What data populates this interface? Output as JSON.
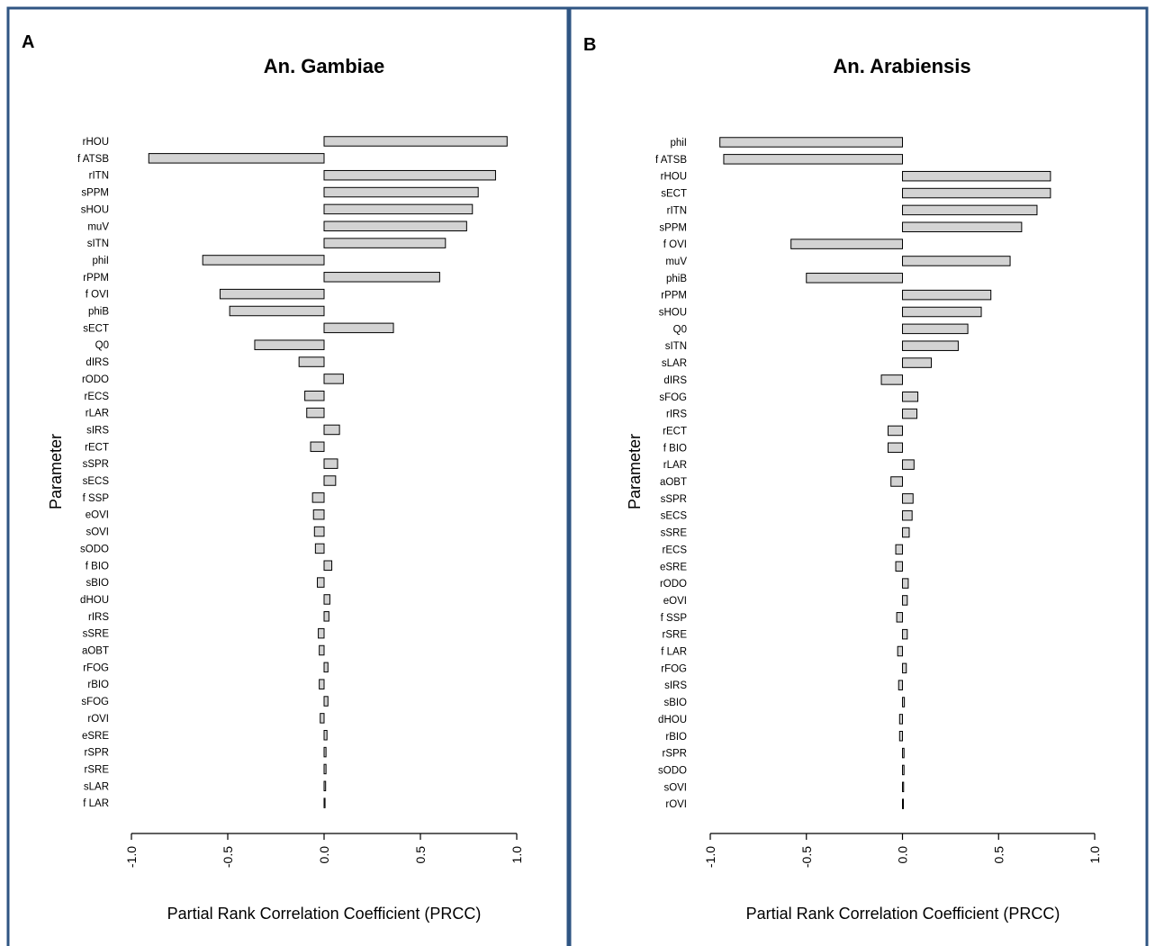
{
  "chart_data": [
    {
      "type": "bar",
      "orientation": "horizontal",
      "panel": "A",
      "title": "An. Gambiae",
      "xlabel": "Partial Rank Correlation Coefficient (PRCC)",
      "ylabel": "Parameter",
      "xlim": [
        -1.0,
        1.0
      ],
      "xticks": [
        "-1.0",
        "-0.5",
        "0.0",
        "0.5",
        "1.0"
      ],
      "categories": [
        "rHOU",
        "f ATSB",
        "rITN",
        "sPPM",
        "sHOU",
        "muV",
        "sITN",
        "phiI",
        "rPPM",
        "f OVI",
        "phiB",
        "sECT",
        "Q0",
        "dIRS",
        "rODO",
        "rECS",
        "rLAR",
        "sIRS",
        "rECT",
        "sSPR",
        "sECS",
        "f SSP",
        "eOVI",
        "sOVI",
        "sODO",
        "f BIO",
        "sBIO",
        "dHOU",
        "rIRS",
        "sSRE",
        "aOBT",
        "rFOG",
        "rBIO",
        "sFOG",
        "rOVI",
        "eSRE",
        "rSPR",
        "rSRE",
        "sLAR",
        "f LAR"
      ],
      "values": [
        0.95,
        -0.91,
        0.89,
        0.8,
        0.77,
        0.74,
        0.63,
        -0.63,
        0.6,
        -0.54,
        -0.49,
        0.36,
        -0.36,
        -0.13,
        0.1,
        -0.1,
        -0.09,
        0.08,
        -0.07,
        0.07,
        0.06,
        -0.06,
        -0.055,
        -0.05,
        -0.045,
        0.04,
        -0.035,
        0.03,
        0.025,
        -0.03,
        -0.025,
        0.02,
        -0.025,
        0.02,
        -0.02,
        0.015,
        0.01,
        0.01,
        0.008,
        0.005
      ]
    },
    {
      "type": "bar",
      "orientation": "horizontal",
      "panel": "B",
      "title": "An. Arabiensis",
      "xlabel": "Partial Rank Correlation Coefficient (PRCC)",
      "ylabel": "Parameter",
      "xlim": [
        -1.0,
        1.0
      ],
      "xticks": [
        "-1.0",
        "-0.5",
        "0.0",
        "0.5",
        "1.0"
      ],
      "categories": [
        "phiI",
        "f ATSB",
        "rHOU",
        "sECT",
        "rITN",
        "sPPM",
        "f OVI",
        "muV",
        "phiB",
        "rPPM",
        "sHOU",
        "Q0",
        "sITN",
        "sLAR",
        "dIRS",
        "sFOG",
        "rIRS",
        "rECT",
        "f BIO",
        "rLAR",
        "aOBT",
        "sSPR",
        "sECS",
        "sSRE",
        "rECS",
        "eSRE",
        "rODO",
        "eOVI",
        "f SSP",
        "rSRE",
        "f LAR",
        "rFOG",
        "sIRS",
        "sBIO",
        "dHOU",
        "rBIO",
        "rSPR",
        "sODO",
        "sOVI",
        "rOVI"
      ],
      "values": [
        -0.95,
        -0.93,
        0.77,
        0.77,
        0.7,
        0.62,
        -0.58,
        0.56,
        -0.5,
        0.46,
        0.41,
        0.34,
        0.29,
        0.15,
        -0.11,
        0.08,
        0.075,
        -0.075,
        -0.075,
        0.06,
        -0.06,
        0.055,
        0.05,
        0.035,
        -0.035,
        -0.035,
        0.03,
        0.025,
        -0.03,
        0.025,
        -0.025,
        0.02,
        -0.02,
        0.01,
        -0.015,
        -0.015,
        0.008,
        0.008,
        0.006,
        0.003
      ]
    }
  ]
}
